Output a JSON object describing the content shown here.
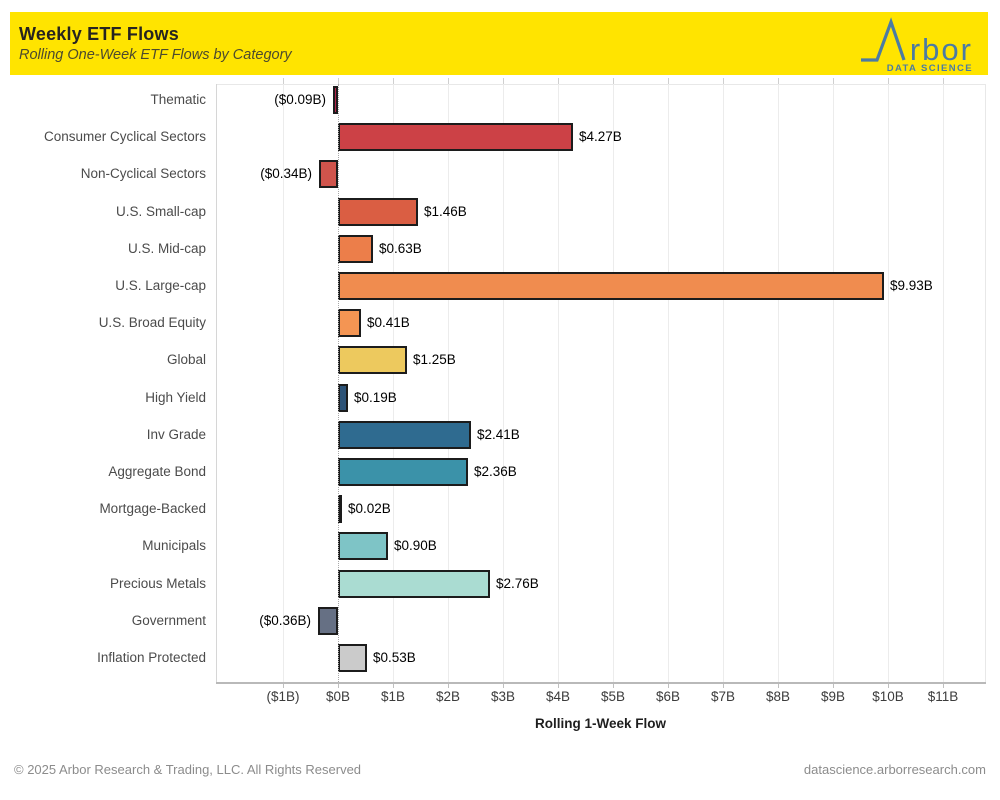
{
  "header": {
    "title": "Weekly ETF Flows",
    "subtitle": "Rolling One-Week ETF Flows by Category",
    "banner_color": "#FFE400"
  },
  "logo": {
    "wordmark": "rbor",
    "tagline": "DATA SCIENCE",
    "color": "#4B7BA3"
  },
  "chart_data": {
    "type": "bar",
    "orientation": "horizontal",
    "title": "Weekly ETF Flows",
    "subtitle": "Rolling One-Week ETF Flows by Category",
    "xlabel": "Rolling 1-Week Flow",
    "unit": "$B",
    "grid": "vertical",
    "xlim": [
      -2.2,
      11.8
    ],
    "x_tick_values": [
      -1,
      0,
      1,
      2,
      3,
      4,
      5,
      6,
      7,
      8,
      9,
      10,
      11
    ],
    "x_tick_labels": [
      "($1B)",
      "$0B",
      "$1B",
      "$2B",
      "$3B",
      "$4B",
      "$5B",
      "$6B",
      "$7B",
      "$8B",
      "$9B",
      "$10B",
      "$11B"
    ],
    "categories": [
      "Thematic",
      "Consumer Cyclical Sectors",
      "Non-Cyclical Sectors",
      "U.S. Small-cap",
      "U.S. Mid-cap",
      "U.S. Large-cap",
      "U.S. Broad Equity",
      "Global",
      "High Yield",
      "Inv Grade",
      "Aggregate Bond",
      "Mortgage-Backed",
      "Municipals",
      "Precious Metals",
      "Government",
      "Inflation Protected"
    ],
    "values": [
      -0.09,
      4.27,
      -0.34,
      1.46,
      0.63,
      9.93,
      0.41,
      1.25,
      0.19,
      2.41,
      2.36,
      0.02,
      0.9,
      2.76,
      -0.36,
      0.53
    ],
    "value_labels": [
      "($0.09B)",
      "$4.27B",
      "($0.34B)",
      "$1.46B",
      "$0.63B",
      "$9.93B",
      "$0.41B",
      "$1.25B",
      "$0.19B",
      "$2.41B",
      "$2.36B",
      "$0.02B",
      "$0.90B",
      "$2.76B",
      "($0.36B)",
      "$0.53B"
    ],
    "bar_colors": [
      "#B2234A",
      "#CC4146",
      "#D0544C",
      "#DA5E43",
      "#EC7E4A",
      "#F08C4F",
      "#F49553",
      "#EDC95E",
      "#2C5377",
      "#2F6B90",
      "#3B92A9",
      "#4FA3A5",
      "#7EC4C6",
      "#AADCD2",
      "#667084",
      "#CBCBCB"
    ]
  },
  "footer": {
    "copyright": "© 2025 Arbor Research & Trading, LLC. All Rights Reserved",
    "website": "datascience.arborresearch.com"
  }
}
